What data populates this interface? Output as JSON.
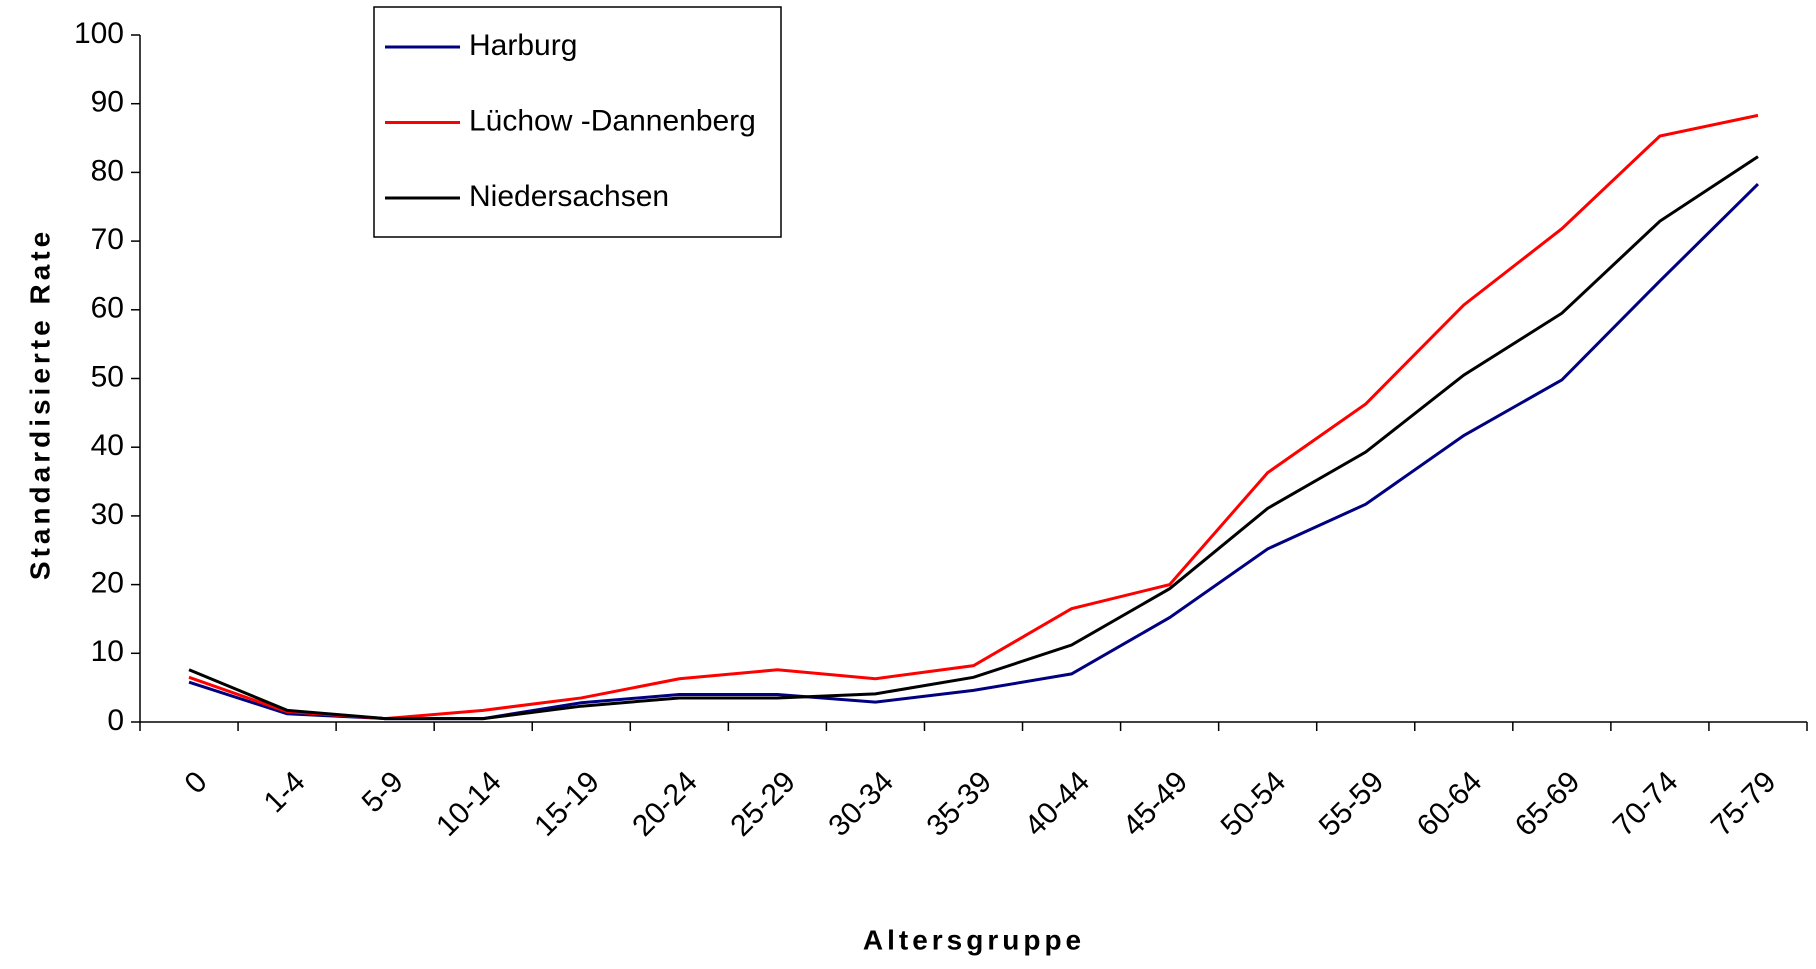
{
  "chart_data": {
    "type": "line",
    "x_label": "Altersgruppe",
    "y_label": "Standardisierte Rate",
    "categories": [
      "0",
      "1-4",
      "5-9",
      "10-14",
      "15-19",
      "20-24",
      "25-29",
      "30-34",
      "35-39",
      "40-44",
      "45-49",
      "50-54",
      "55-59",
      "60-64",
      "65-69",
      "70-74",
      "75-79"
    ],
    "series": [
      {
        "name": "Harburg",
        "color": "#000080",
        "values": [
          5.8,
          1.2,
          0.5,
          0.5,
          2.8,
          4,
          4,
          2.9,
          4.6,
          7,
          15.2,
          25.2,
          31.7,
          41.7,
          49.8,
          64.2,
          78.3
        ]
      },
      {
        "name": "Lüchow -Dannenberg",
        "color": "#ff0000",
        "values": [
          6.5,
          1.5,
          0.5,
          1.7,
          3.5,
          6.3,
          7.6,
          6.3,
          8.2,
          16.5,
          20,
          36.3,
          46.3,
          60.7,
          71.8,
          85.3,
          88.3
        ]
      },
      {
        "name": "Niedersachsen",
        "color": "#000000",
        "values": [
          7.6,
          1.7,
          0.5,
          0.5,
          2.3,
          3.5,
          3.5,
          4.1,
          6.5,
          11.2,
          19.4,
          31.1,
          39.3,
          50.5,
          59.5,
          72.9,
          82.3
        ]
      }
    ],
    "ylim": [
      0,
      100
    ],
    "yticks": [
      0,
      10,
      20,
      30,
      40,
      50,
      60,
      70,
      80,
      90,
      100
    ],
    "grid": false,
    "legend": "top-left"
  }
}
